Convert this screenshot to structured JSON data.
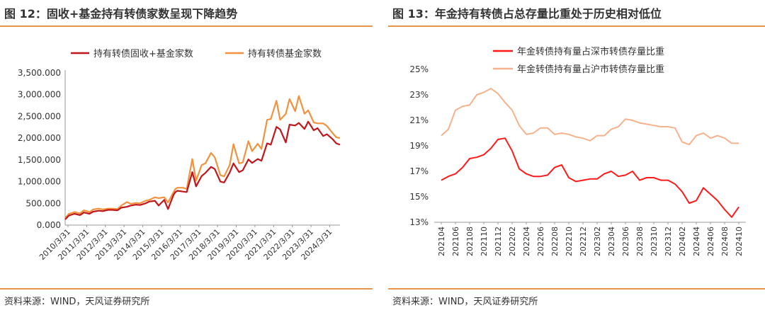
{
  "left": {
    "title": "图 12：固收+基金持有转债家数呈现下降趋势",
    "source": "资料来源：WIND，天风证券研究所"
  },
  "right": {
    "title": "图 13：年金持有转债占总存量比重处于历史相对低位",
    "source": "资料来源：WIND，天风证券研究所"
  },
  "colors": {
    "accent": "#e8944a",
    "dark_red": "#c0171c",
    "orange": "#f2923e",
    "bright_red": "#ff1a1a",
    "peach": "#f5b28c"
  },
  "chart_data": [
    {
      "type": "line",
      "title": "",
      "x_ticks": [
        "2010/3/31",
        "2011/3/31",
        "2012/3/31",
        "2013/3/31",
        "2014/3/31",
        "2015/3/31",
        "2016/3/31",
        "2017/3/31",
        "2018/3/31",
        "2019/3/31",
        "2020/3/31",
        "2021/3/31",
        "2022/3/31",
        "2023/3/31",
        "2024/3/31"
      ],
      "x_range": [
        2010.1,
        2024.8
      ],
      "y_ticks": [
        "0.000",
        "500.000",
        "1,000.000",
        "1,500.000",
        "2,000.000",
        "2,500.000",
        "3,000.000",
        "3,500.000"
      ],
      "ylim": [
        0,
        3500
      ],
      "legend_position": "top",
      "series": [
        {
          "name": "持有转债固收+基金家数",
          "color": "#c0171c",
          "x": [
            2010.1,
            2010.3,
            2010.6,
            2010.9,
            2011.1,
            2011.4,
            2011.6,
            2011.9,
            2012.1,
            2012.4,
            2012.6,
            2012.9,
            2013.1,
            2013.4,
            2013.6,
            2013.9,
            2014.1,
            2014.4,
            2014.6,
            2014.9,
            2015.1,
            2015.4,
            2015.6,
            2015.9,
            2016.0,
            2016.1,
            2016.4,
            2016.6,
            2016.9,
            2017.1,
            2017.4,
            2017.6,
            2017.9,
            2018.1,
            2018.4,
            2018.6,
            2018.9,
            2019.1,
            2019.4,
            2019.6,
            2019.9,
            2020.1,
            2020.4,
            2020.6,
            2020.9,
            2021.1,
            2021.4,
            2021.6,
            2021.9,
            2022.1,
            2022.4,
            2022.6,
            2022.9,
            2023.1,
            2023.4,
            2023.6,
            2023.9,
            2024.1,
            2024.4,
            2024.6,
            2024.8
          ],
          "y": [
            130,
            220,
            260,
            230,
            290,
            260,
            310,
            330,
            320,
            350,
            350,
            340,
            400,
            420,
            450,
            470,
            460,
            500,
            540,
            560,
            450,
            580,
            370,
            700,
            760,
            790,
            770,
            760,
            1220,
            890,
            1130,
            1200,
            1340,
            1290,
            1000,
            980,
            1210,
            1420,
            1220,
            1260,
            1510,
            1430,
            1520,
            1480,
            1880,
            1850,
            2260,
            2200,
            1900,
            2310,
            2290,
            2350,
            2210,
            2380,
            2180,
            2230,
            2050,
            2090,
            1980,
            1880,
            1850
          ]
        },
        {
          "name": "持有转债基金家数",
          "color": "#f2923e",
          "x": [
            2010.1,
            2010.3,
            2010.6,
            2010.9,
            2011.1,
            2011.4,
            2011.6,
            2011.9,
            2012.1,
            2012.4,
            2012.6,
            2012.9,
            2013.1,
            2013.4,
            2013.6,
            2013.9,
            2014.1,
            2014.4,
            2014.6,
            2014.9,
            2015.1,
            2015.4,
            2015.6,
            2015.9,
            2016.0,
            2016.1,
            2016.4,
            2016.6,
            2016.9,
            2017.1,
            2017.4,
            2017.6,
            2017.9,
            2018.1,
            2018.4,
            2018.6,
            2018.9,
            2019.1,
            2019.4,
            2019.6,
            2019.9,
            2020.1,
            2020.4,
            2020.6,
            2020.9,
            2021.1,
            2021.4,
            2021.6,
            2021.9,
            2022.1,
            2022.4,
            2022.6,
            2022.9,
            2023.1,
            2023.4,
            2023.6,
            2023.9,
            2024.1,
            2024.4,
            2024.6,
            2024.8
          ],
          "y": [
            160,
            260,
            300,
            270,
            340,
            300,
            360,
            380,
            360,
            380,
            380,
            370,
            450,
            530,
            490,
            510,
            500,
            560,
            580,
            640,
            620,
            640,
            520,
            760,
            830,
            860,
            860,
            830,
            1520,
            1020,
            1380,
            1420,
            1660,
            1560,
            1150,
            1120,
            1380,
            1860,
            1420,
            1440,
            1930,
            1700,
            1870,
            1750,
            2420,
            2440,
            2860,
            2420,
            2560,
            2900,
            2620,
            2970,
            2560,
            2640,
            2360,
            2340,
            2340,
            2280,
            2120,
            2020,
            2000
          ]
        }
      ]
    },
    {
      "type": "line",
      "title": "",
      "x_ticks": [
        "202104",
        "202106",
        "202108",
        "202110",
        "202112",
        "202202",
        "202204",
        "202206",
        "202208",
        "202210",
        "202212",
        "202302",
        "202304",
        "202306",
        "202308",
        "202310",
        "202312",
        "202402",
        "202404",
        "202406",
        "202408",
        "202410"
      ],
      "y_ticks": [
        "13%",
        "15%",
        "17%",
        "19%",
        "21%",
        "23%",
        "25%"
      ],
      "ylim": [
        13,
        25
      ],
      "legend_position": "top",
      "series": [
        {
          "name": "年金转债持有量占深市转债存量比重",
          "color": "#ff1a1a",
          "values": [
            16.3,
            16.6,
            16.8,
            17.3,
            18.0,
            18.1,
            18.3,
            18.8,
            19.5,
            19.6,
            18.6,
            17.2,
            16.8,
            16.6,
            16.6,
            16.7,
            17.3,
            17.5,
            16.5,
            16.2,
            16.3,
            16.4,
            16.4,
            16.8,
            17.0,
            16.6,
            16.7,
            17.0,
            16.3,
            16.5,
            16.5,
            16.3,
            16.3,
            16.0,
            15.4,
            14.5,
            14.7,
            15.7,
            15.2,
            14.7,
            14.0,
            13.4,
            14.2
          ]
        },
        {
          "name": "年金转债持有量占沪市转债存量比重",
          "color": "#f5b28c",
          "values": [
            19.8,
            20.3,
            21.8,
            22.1,
            22.2,
            23.0,
            23.2,
            23.5,
            23.1,
            22.4,
            21.8,
            20.6,
            19.9,
            20.0,
            20.4,
            20.4,
            19.9,
            20.0,
            19.9,
            19.7,
            19.6,
            19.4,
            19.8,
            19.8,
            20.3,
            20.5,
            21.1,
            21.0,
            20.8,
            20.7,
            20.6,
            20.5,
            20.5,
            20.4,
            19.3,
            19.1,
            19.8,
            20.0,
            19.6,
            19.8,
            19.6,
            19.2,
            19.2
          ]
        }
      ]
    }
  ]
}
